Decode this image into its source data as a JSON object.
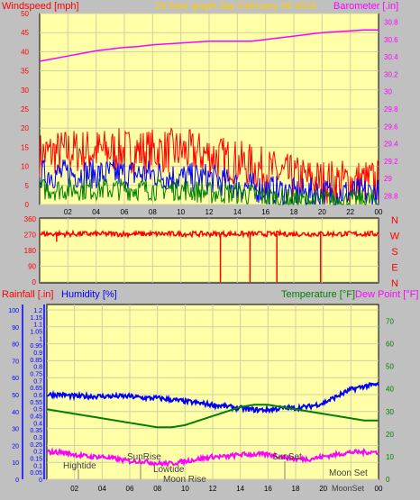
{
  "colors": {
    "bg": "#c0c0c0",
    "plot_bg": "#ffffa8",
    "grid": "#d0d0a0",
    "axis": "#000000",
    "red": "#ff0000",
    "blue": "#0000ff",
    "green": "#008000",
    "magenta": "#ff00ff",
    "title": "#ffcc00",
    "rain_axis": "#0000ff",
    "temp_axis": "#008000"
  },
  "header": {
    "wind_label": "Windspeed [mph]",
    "title": "24 hour graph day   February 09 2019",
    "baro_label": "Barometer [.in]"
  },
  "compass": [
    "N",
    "W",
    "S",
    "E",
    "N"
  ],
  "x_ticks": [
    "02",
    "04",
    "06",
    "08",
    "10",
    "12",
    "14",
    "16",
    "18",
    "20",
    "22",
    "00"
  ],
  "lower_header": {
    "rain_label": "Rainfall [.in]",
    "humidity_label": "Humidity [%]",
    "temp_label": "Temperature [°F]",
    "dew_label": "Dew Point [°F]"
  },
  "events": {
    "hightide": "Hightide",
    "sunrise": "SunRise",
    "lowtide": "Lowtide",
    "moonrise": "Moon Rise",
    "sunset": "SunSet",
    "moonset": "Moon Set",
    "moonset2": "MoonSet"
  },
  "chart_data": [
    {
      "type": "line",
      "name": "wind-barometer",
      "x_unit": "hour",
      "xlim": [
        0,
        24
      ],
      "left_axis": {
        "label": "Windspeed [mph]",
        "ylim": [
          0,
          50
        ],
        "ticks": [
          0,
          5,
          10,
          15,
          20,
          25,
          30,
          35,
          40,
          45,
          50
        ]
      },
      "right_axis": {
        "label": "Barometer [.in]",
        "ylim": [
          28.7,
          30.9
        ],
        "ticks": [
          28.8,
          29,
          29.2,
          29.4,
          29.6,
          29.8,
          30,
          30.2,
          30.4,
          30.6,
          30.8
        ]
      },
      "series": [
        {
          "name": "Barometer [.in]",
          "axis": "right",
          "color": "magenta",
          "x": [
            0,
            1,
            2,
            3,
            4,
            5,
            6,
            7,
            8,
            9,
            10,
            11,
            12,
            13,
            14,
            15,
            16,
            17,
            18,
            19,
            20,
            21,
            22,
            23,
            24
          ],
          "y": [
            30.35,
            30.38,
            30.41,
            30.44,
            30.47,
            30.49,
            30.51,
            30.52,
            30.54,
            30.55,
            30.56,
            30.57,
            30.58,
            30.58,
            30.58,
            30.58,
            30.6,
            30.62,
            30.64,
            30.66,
            30.68,
            30.69,
            30.7,
            30.71,
            30.71
          ]
        },
        {
          "axis": "left",
          "color": "red",
          "noisy": true,
          "x": [
            0,
            2,
            4,
            6,
            8,
            10,
            12,
            14,
            16,
            18,
            20,
            22,
            24
          ],
          "y": [
            13,
            14,
            14,
            14,
            14,
            14,
            13,
            11,
            9,
            7,
            6,
            6,
            6
          ]
        },
        {
          "axis": "left",
          "color": "blue",
          "noisy": true,
          "x": [
            0,
            2,
            4,
            6,
            8,
            10,
            12,
            14,
            16,
            18,
            20,
            22,
            24
          ],
          "y": [
            8,
            8,
            8,
            8,
            8,
            7,
            7,
            5,
            4,
            3,
            3,
            3,
            3
          ]
        },
        {
          "axis": "left",
          "color": "green",
          "noisy": true,
          "x": [
            0,
            2,
            4,
            6,
            8,
            10,
            12,
            14,
            16,
            18,
            20,
            22,
            24
          ],
          "y": [
            4,
            4,
            4,
            4,
            4,
            4,
            3,
            3,
            2,
            1,
            1,
            1,
            1
          ]
        }
      ]
    },
    {
      "type": "line",
      "name": "wind-direction",
      "x_unit": "hour",
      "xlim": [
        0,
        24
      ],
      "ylim": [
        0,
        360
      ],
      "ticks": [
        0,
        90,
        180,
        270,
        360
      ],
      "series": [
        {
          "name": "direction",
          "color": "red",
          "baseline": 275,
          "drops": [
            {
              "x": 1.2,
              "y": 230
            },
            {
              "x": 12.8,
              "y": 0
            },
            {
              "x": 14.9,
              "y": 0
            },
            {
              "x": 16.8,
              "y": 0
            },
            {
              "x": 19.9,
              "y": 0
            }
          ]
        }
      ]
    },
    {
      "type": "line",
      "name": "rain-humidity-temp-dew",
      "x_unit": "hour",
      "xlim": [
        0,
        24
      ],
      "left_axis": {
        "label": "Rainfall [.in]",
        "ylim": [
          0,
          1.2
        ],
        "ticks": [
          0,
          0.05,
          0.1,
          0.15,
          0.2,
          0.25,
          0.3,
          0.35,
          0.4,
          0.45,
          0.5,
          0.55,
          0.6,
          0.65,
          0.7,
          0.75,
          0.8,
          0.85,
          0.9,
          0.95,
          1,
          1.05,
          1.1,
          1.15,
          1.2
        ]
      },
      "humidity_axis": {
        "label": "Humidity [%]",
        "ylim": [
          0,
          100
        ],
        "ticks": [
          0,
          10,
          20,
          30,
          40,
          50,
          60,
          70,
          80,
          90,
          100
        ]
      },
      "right_axis": {
        "label": "Temperature [°F]",
        "ylim": [
          0,
          75
        ],
        "ticks": [
          0,
          10,
          20,
          30,
          40,
          50,
          60,
          70
        ]
      },
      "series": [
        {
          "name": "Humidity [%]",
          "axis": "humidity",
          "color": "blue",
          "noisy": true,
          "x": [
            0,
            1,
            2,
            3,
            4,
            5,
            6,
            7,
            8,
            9,
            10,
            11,
            12,
            13,
            14,
            15,
            16,
            17,
            18,
            19,
            20,
            21,
            22,
            23,
            24
          ],
          "y": [
            50,
            50,
            49,
            49,
            49,
            49,
            49,
            48,
            48,
            47,
            46,
            45,
            44,
            43,
            42,
            41,
            41,
            42,
            42,
            43,
            45,
            49,
            53,
            55,
            56
          ]
        },
        {
          "name": "Temperature [°F]",
          "axis": "right",
          "color": "green",
          "x": [
            0,
            1,
            2,
            3,
            4,
            5,
            6,
            7,
            8,
            9,
            10,
            11,
            12,
            13,
            14,
            15,
            16,
            17,
            18,
            19,
            20,
            21,
            22,
            23,
            24
          ],
          "y": [
            31,
            30,
            29,
            28,
            27,
            26,
            25,
            24,
            23,
            23,
            24,
            26,
            28,
            30,
            32,
            33,
            33,
            32,
            31,
            30,
            29,
            28,
            27,
            26,
            26
          ]
        },
        {
          "name": "Dew Point [°F]",
          "axis": "right",
          "color": "magenta",
          "noisy": true,
          "x": [
            0,
            1,
            2,
            3,
            4,
            5,
            6,
            7,
            8,
            9,
            10,
            11,
            12,
            13,
            14,
            15,
            16,
            17,
            18,
            19,
            20,
            21,
            22,
            23,
            24
          ],
          "y": [
            12,
            12,
            11,
            10,
            10,
            9,
            8,
            8,
            7,
            7,
            8,
            9,
            10,
            10,
            11,
            11,
            11,
            10,
            9,
            9,
            10,
            11,
            12,
            12,
            12
          ]
        }
      ]
    }
  ]
}
